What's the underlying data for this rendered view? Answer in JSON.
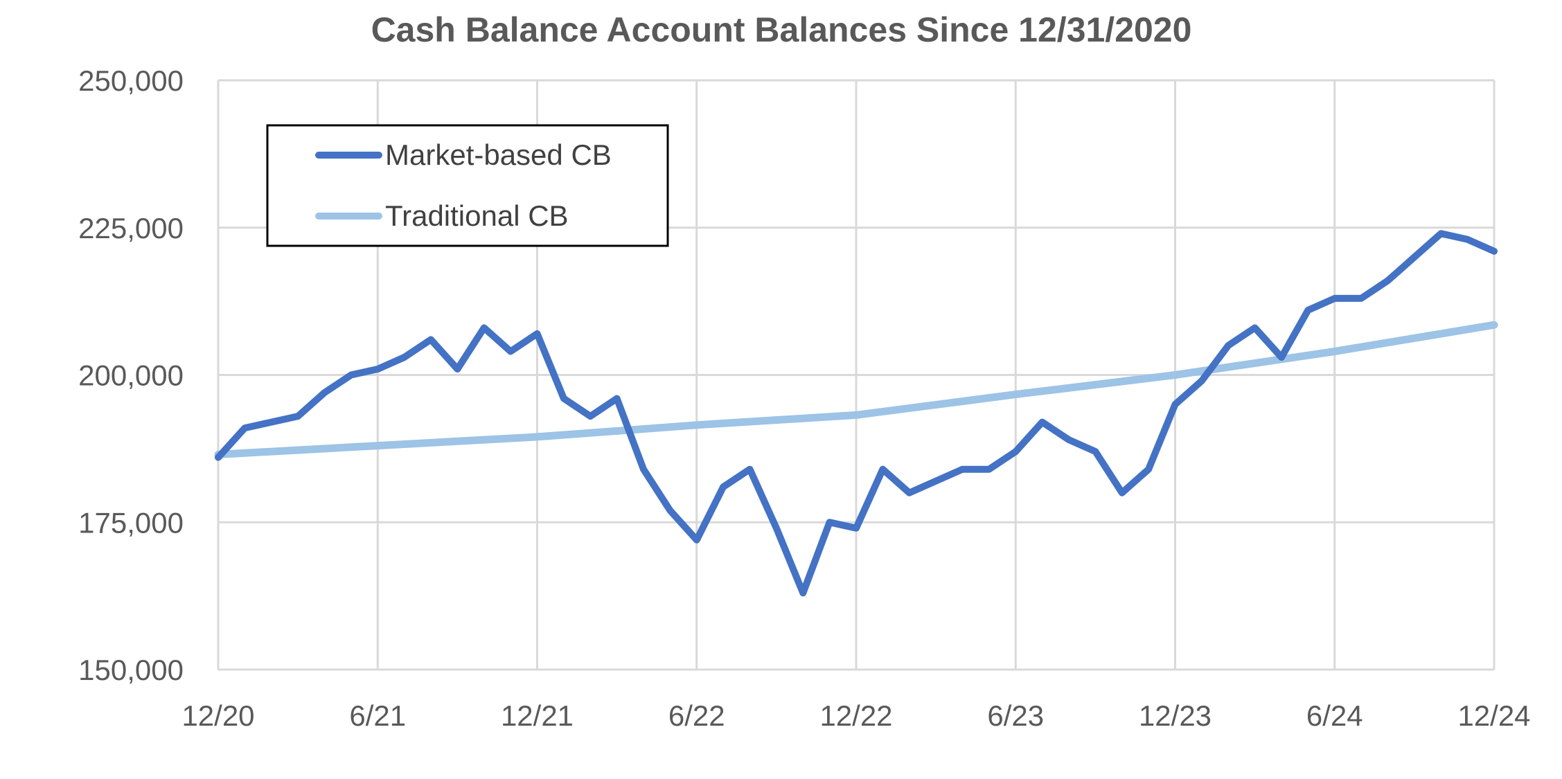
{
  "chart_data": {
    "type": "line",
    "title": "Cash Balance Account Balances Since 12/31/2020",
    "xlabel": "",
    "ylabel": "",
    "ylim": [
      150000,
      250000
    ],
    "y_ticks": [
      150000,
      175000,
      200000,
      225000,
      250000
    ],
    "y_tick_labels": [
      "150,000",
      "175,000",
      "200,000",
      "225,000",
      "250,000"
    ],
    "x_tick_labels": [
      "12/20",
      "6/21",
      "12/21",
      "6/22",
      "12/22",
      "6/23",
      "12/23",
      "6/24",
      "12/24"
    ],
    "grid": true,
    "legend_position": "top-left",
    "colors": {
      "market": "#4472c4",
      "traditional": "#9dc3e6",
      "grid": "#d9d9d9",
      "text": "#595959"
    },
    "series": [
      {
        "name": "Market-based CB",
        "color": "#4472c4",
        "x": [
          "12/20",
          "1/21",
          "2/21",
          "3/21",
          "4/21",
          "5/21",
          "6/21",
          "7/21",
          "8/21",
          "9/21",
          "10/21",
          "11/21",
          "12/21",
          "1/22",
          "2/22",
          "3/22",
          "4/22",
          "5/22",
          "6/22",
          "7/22",
          "8/22",
          "9/22",
          "10/22",
          "11/22",
          "12/22",
          "1/23",
          "2/23",
          "3/23",
          "4/23",
          "5/23",
          "6/23",
          "7/23",
          "8/23",
          "9/23",
          "10/23",
          "11/23",
          "12/23",
          "1/24",
          "2/24",
          "3/24",
          "4/24",
          "5/24",
          "6/24",
          "7/24",
          "8/24",
          "9/24",
          "10/24",
          "11/24",
          "12/24"
        ],
        "values": [
          186000,
          191000,
          192000,
          193000,
          197000,
          200000,
          201000,
          203000,
          206000,
          201000,
          208000,
          204000,
          207000,
          196000,
          193000,
          196000,
          184000,
          177000,
          172000,
          181000,
          184000,
          174000,
          163000,
          175000,
          174000,
          184000,
          180000,
          182000,
          184000,
          184000,
          187000,
          192000,
          189000,
          187000,
          180000,
          184000,
          195000,
          199000,
          205000,
          208000,
          203000,
          211000,
          213000,
          213000,
          216000,
          220000,
          224000,
          223000,
          221000
        ]
      },
      {
        "name": "Traditional CB",
        "color": "#9dc3e6",
        "x": [
          "12/20",
          "6/21",
          "12/21",
          "6/22",
          "12/22",
          "6/23",
          "12/23",
          "6/24",
          "12/24"
        ],
        "values": [
          186500,
          188000,
          189500,
          191500,
          193200,
          196700,
          200000,
          204000,
          208500
        ]
      }
    ]
  }
}
